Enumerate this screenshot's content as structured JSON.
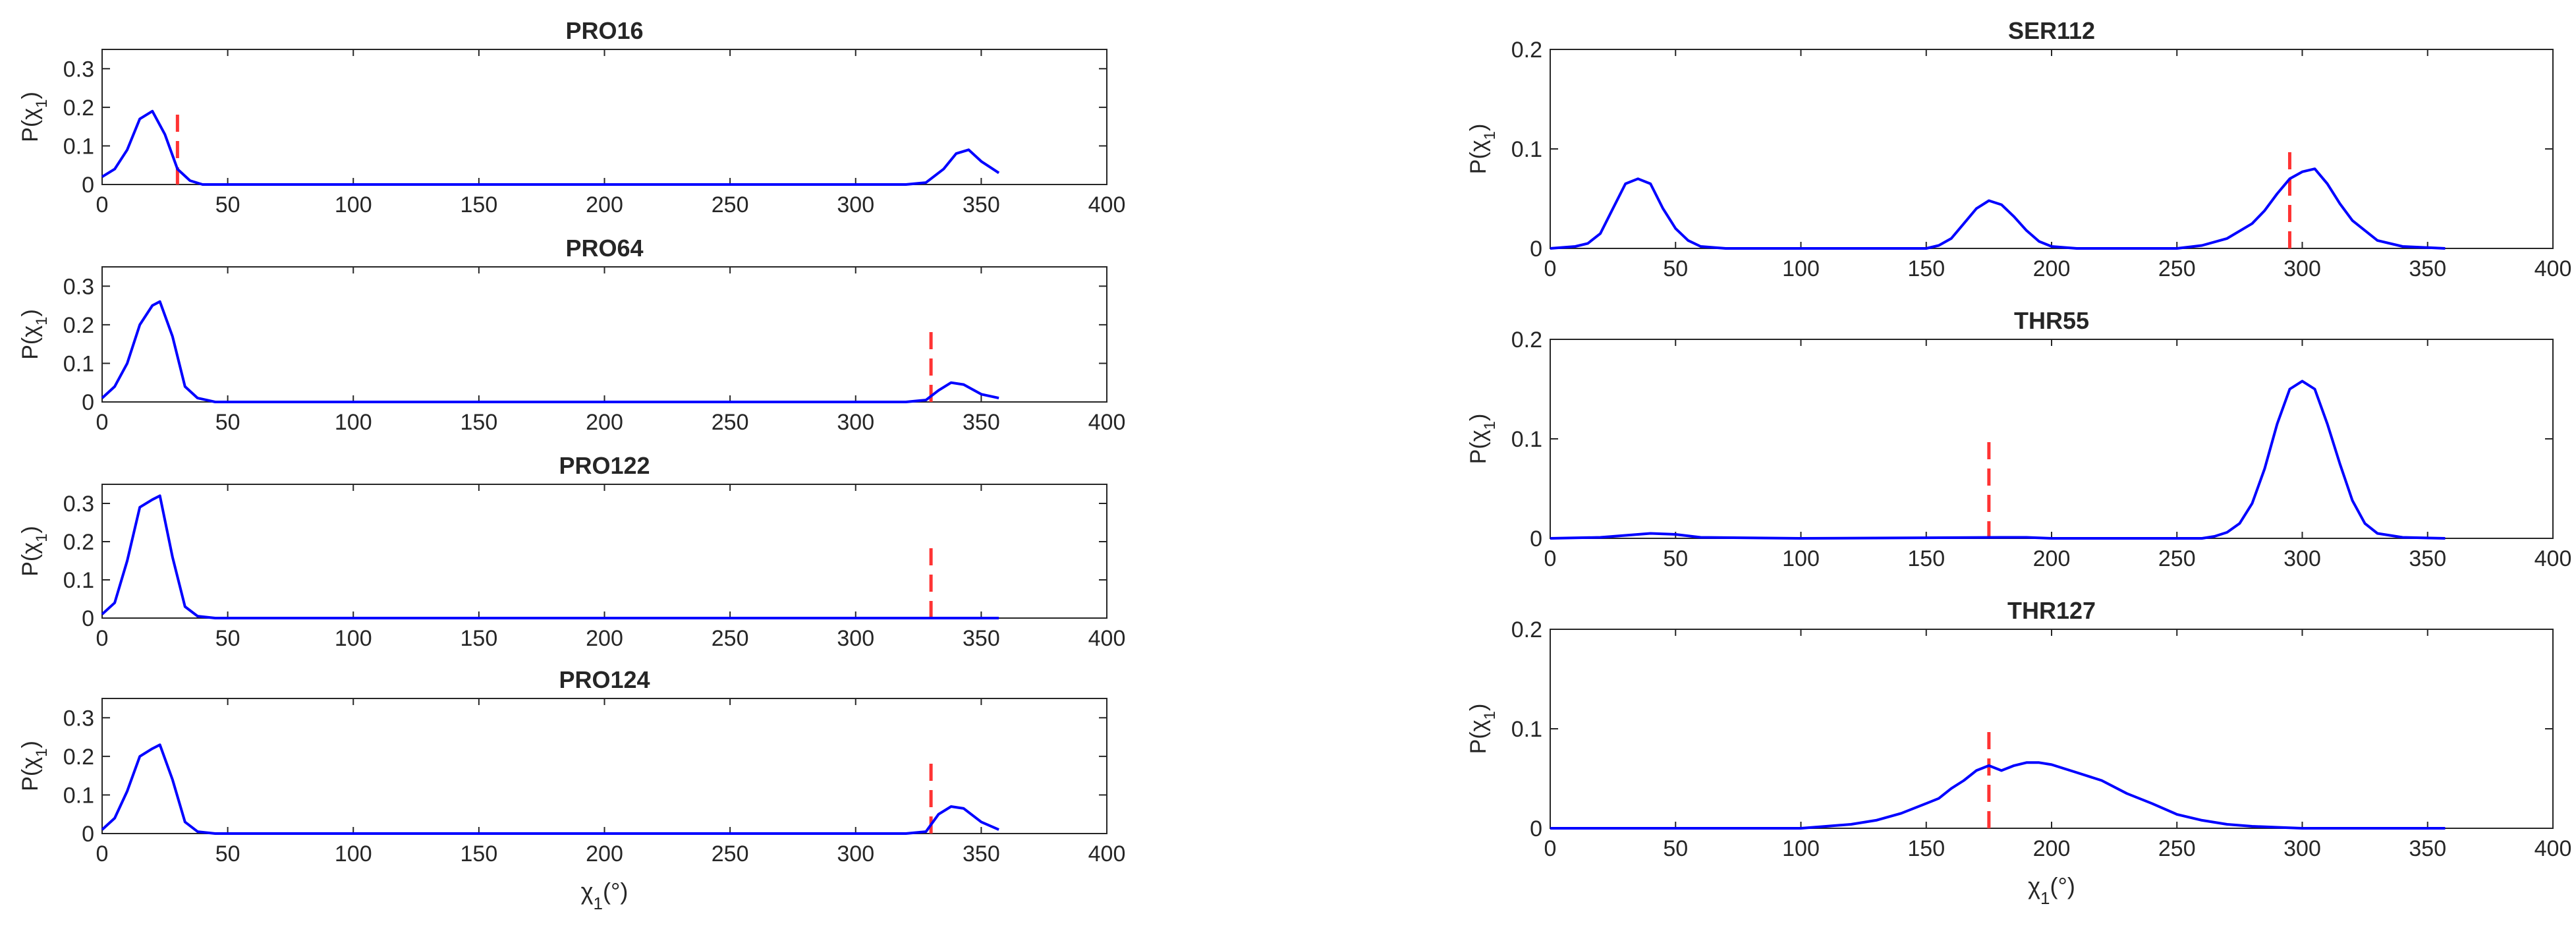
{
  "chart_data": [
    {
      "id": "pro16",
      "type": "line",
      "title": "PRO16",
      "xlabel": "",
      "ylabel": "P(χ1)",
      "xlim": [
        0,
        400
      ],
      "ylim": [
        0,
        0.35
      ],
      "xticks": [
        "0",
        "50",
        "100",
        "150",
        "200",
        "250",
        "300",
        "350",
        "400"
      ],
      "yticks": [
        "0",
        "0.1",
        "0.2",
        "0.3"
      ],
      "series": [
        {
          "color": "#0000ff",
          "x": [
            0,
            5,
            10,
            15,
            20,
            25,
            30,
            35,
            40,
            50,
            100,
            200,
            300,
            320,
            328,
            335,
            340,
            345,
            350,
            357
          ],
          "y": [
            0.02,
            0.04,
            0.09,
            0.17,
            0.19,
            0.13,
            0.04,
            0.01,
            0.0,
            0.0,
            0.0,
            0.0,
            0.0,
            0.0,
            0.005,
            0.04,
            0.08,
            0.09,
            0.06,
            0.03
          ]
        }
      ],
      "reference_lines": [
        {
          "x": 30,
          "y_max": 0.2,
          "color": "#ff3333",
          "style": "dashed"
        }
      ]
    },
    {
      "id": "pro64",
      "type": "line",
      "title": "PRO64",
      "xlabel": "",
      "ylabel": "P(χ1)",
      "xlim": [
        0,
        400
      ],
      "ylim": [
        0,
        0.35
      ],
      "xticks": [
        "0",
        "50",
        "100",
        "150",
        "200",
        "250",
        "300",
        "350",
        "400"
      ],
      "yticks": [
        "0",
        "0.1",
        "0.2",
        "0.3"
      ],
      "series": [
        {
          "color": "#0000ff",
          "x": [
            0,
            5,
            10,
            15,
            20,
            23,
            28,
            33,
            38,
            45,
            100,
            200,
            300,
            320,
            328,
            333,
            338,
            343,
            350,
            357
          ],
          "y": [
            0.01,
            0.04,
            0.1,
            0.2,
            0.25,
            0.26,
            0.17,
            0.04,
            0.01,
            0.0,
            0.0,
            0.0,
            0.0,
            0.0,
            0.005,
            0.03,
            0.05,
            0.045,
            0.02,
            0.01
          ]
        }
      ],
      "reference_lines": [
        {
          "x": 330,
          "y_max": 0.2,
          "color": "#ff3333",
          "style": "dashed"
        }
      ]
    },
    {
      "id": "pro122",
      "type": "line",
      "title": "PRO122",
      "xlabel": "",
      "ylabel": "P(χ1)",
      "xlim": [
        0,
        400
      ],
      "ylim": [
        0,
        0.35
      ],
      "xticks": [
        "0",
        "50",
        "100",
        "150",
        "200",
        "250",
        "300",
        "350",
        "400"
      ],
      "yticks": [
        "0",
        "0.1",
        "0.2",
        "0.3"
      ],
      "series": [
        {
          "color": "#0000ff",
          "x": [
            0,
            5,
            10,
            15,
            20,
            23,
            28,
            33,
            38,
            45,
            100,
            200,
            300,
            357
          ],
          "y": [
            0.01,
            0.04,
            0.15,
            0.29,
            0.31,
            0.32,
            0.16,
            0.03,
            0.005,
            0.0,
            0.0,
            0.0,
            0.0,
            0.0
          ]
        }
      ],
      "reference_lines": [
        {
          "x": 330,
          "y_max": 0.2,
          "color": "#ff3333",
          "style": "dashed"
        }
      ]
    },
    {
      "id": "pro124",
      "type": "line",
      "title": "PRO124",
      "xlabel": "χ1(°)",
      "ylabel": "P(χ1)",
      "xlim": [
        0,
        400
      ],
      "ylim": [
        0,
        0.35
      ],
      "xticks": [
        "0",
        "50",
        "100",
        "150",
        "200",
        "250",
        "300",
        "350",
        "400"
      ],
      "yticks": [
        "0",
        "0.1",
        "0.2",
        "0.3"
      ],
      "series": [
        {
          "color": "#0000ff",
          "x": [
            0,
            5,
            10,
            15,
            20,
            23,
            28,
            33,
            38,
            45,
            100,
            200,
            300,
            320,
            328,
            333,
            338,
            343,
            350,
            357
          ],
          "y": [
            0.01,
            0.04,
            0.11,
            0.2,
            0.22,
            0.23,
            0.14,
            0.03,
            0.005,
            0.0,
            0.0,
            0.0,
            0.0,
            0.0,
            0.005,
            0.05,
            0.07,
            0.065,
            0.03,
            0.01
          ]
        }
      ],
      "reference_lines": [
        {
          "x": 330,
          "y_max": 0.2,
          "color": "#ff3333",
          "style": "dashed"
        }
      ]
    },
    {
      "id": "ser112",
      "type": "line",
      "title": "SER112",
      "xlabel": "",
      "ylabel": "P(χ1)",
      "xlim": [
        0,
        400
      ],
      "ylim": [
        0,
        0.2
      ],
      "xticks": [
        "0",
        "50",
        "100",
        "150",
        "200",
        "250",
        "300",
        "350",
        "400"
      ],
      "yticks": [
        "0",
        "0.1",
        "0.2"
      ],
      "series": [
        {
          "color": "#0000ff",
          "x": [
            0,
            10,
            15,
            20,
            25,
            30,
            35,
            40,
            45,
            50,
            55,
            60,
            70,
            100,
            150,
            155,
            160,
            165,
            170,
            175,
            180,
            185,
            190,
            195,
            200,
            210,
            250,
            260,
            270,
            280,
            285,
            290,
            295,
            300,
            305,
            310,
            315,
            320,
            330,
            340,
            357
          ],
          "y": [
            0.0,
            0.002,
            0.005,
            0.015,
            0.04,
            0.065,
            0.07,
            0.065,
            0.04,
            0.02,
            0.008,
            0.002,
            0.0,
            0.0,
            0.0,
            0.003,
            0.01,
            0.025,
            0.04,
            0.048,
            0.044,
            0.032,
            0.018,
            0.007,
            0.002,
            0.0,
            0.0,
            0.003,
            0.01,
            0.025,
            0.038,
            0.055,
            0.07,
            0.077,
            0.08,
            0.065,
            0.045,
            0.028,
            0.008,
            0.002,
            0.0
          ]
        }
      ],
      "reference_lines": [
        {
          "x": 295,
          "y_max": 0.1,
          "color": "#ff3333",
          "style": "dashed"
        }
      ]
    },
    {
      "id": "thr55",
      "type": "line",
      "title": "THR55",
      "xlabel": "",
      "ylabel": "P(χ1)",
      "xlim": [
        0,
        400
      ],
      "ylim": [
        0,
        0.2
      ],
      "xticks": [
        "0",
        "50",
        "100",
        "150",
        "200",
        "250",
        "300",
        "350",
        "400"
      ],
      "yticks": [
        "0",
        "0.1",
        "0.2"
      ],
      "series": [
        {
          "color": "#0000ff",
          "x": [
            0,
            20,
            30,
            40,
            50,
            60,
            100,
            180,
            190,
            200,
            260,
            265,
            270,
            275,
            280,
            285,
            290,
            295,
            300,
            305,
            310,
            315,
            320,
            325,
            330,
            340,
            357
          ],
          "y": [
            0.0,
            0.001,
            0.003,
            0.005,
            0.004,
            0.001,
            0.0,
            0.001,
            0.001,
            0.0,
            0.0,
            0.002,
            0.006,
            0.015,
            0.035,
            0.07,
            0.115,
            0.15,
            0.158,
            0.15,
            0.115,
            0.075,
            0.038,
            0.015,
            0.005,
            0.001,
            0.0
          ]
        }
      ],
      "reference_lines": [
        {
          "x": 175,
          "y_max": 0.1,
          "color": "#ff3333",
          "style": "dashed"
        }
      ]
    },
    {
      "id": "thr127",
      "type": "line",
      "title": "THR127",
      "xlabel": "χ1(°)",
      "ylabel": "P(χ1)",
      "xlim": [
        0,
        400
      ],
      "ylim": [
        0,
        0.2
      ],
      "xticks": [
        "0",
        "50",
        "100",
        "150",
        "200",
        "250",
        "300",
        "350",
        "400"
      ],
      "yticks": [
        "0",
        "0.1",
        "0.2"
      ],
      "series": [
        {
          "color": "#0000ff",
          "x": [
            0,
            50,
            100,
            110,
            120,
            130,
            140,
            150,
            155,
            160,
            165,
            170,
            175,
            180,
            185,
            190,
            195,
            200,
            205,
            210,
            220,
            230,
            240,
            250,
            260,
            270,
            280,
            290,
            300,
            357
          ],
          "y": [
            0.0,
            0.0,
            0.0,
            0.002,
            0.004,
            0.008,
            0.015,
            0.025,
            0.03,
            0.04,
            0.048,
            0.058,
            0.063,
            0.058,
            0.063,
            0.066,
            0.066,
            0.064,
            0.06,
            0.056,
            0.048,
            0.035,
            0.025,
            0.014,
            0.008,
            0.004,
            0.002,
            0.001,
            0.0,
            0.0
          ]
        }
      ],
      "reference_lines": [
        {
          "x": 175,
          "y_max": 0.1,
          "color": "#ff3333",
          "style": "dashed"
        }
      ]
    }
  ]
}
